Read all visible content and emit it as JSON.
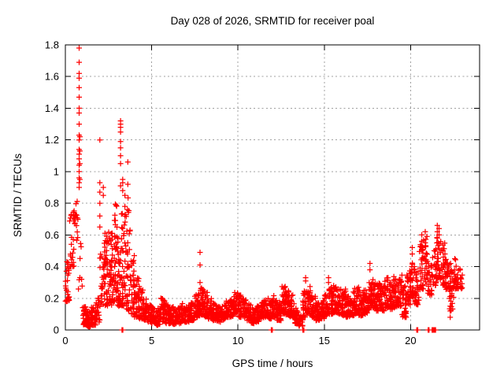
{
  "chart": {
    "title": "Day 028 of 2026, SRMTID for receiver poal",
    "xlabel": "GPS time / hours",
    "ylabel": "SRMTID / TECUs"
  },
  "chart_data": {
    "type": "scatter",
    "title": "Day 028 of 2026, SRMTID for receiver poal",
    "xlabel": "GPS time / hours",
    "ylabel": "SRMTID / TECUs",
    "marker": "plus",
    "marker_color": "#ff0000",
    "grid_color": "#a0a0a0",
    "border_color": "#000000",
    "background": "#ffffff",
    "x_range": [
      0,
      24
    ],
    "y_range": [
      0,
      1.8
    ],
    "x_ticks": [
      0,
      5,
      10,
      15,
      20
    ],
    "x_tick_labels": [
      "0",
      "5",
      "10",
      "15",
      "20"
    ],
    "y_ticks": [
      0,
      0.2,
      0.4,
      0.6,
      0.8,
      1,
      1.2,
      1.4,
      1.6,
      1.8
    ],
    "y_tick_labels": [
      "0",
      "0.2",
      "0.4",
      "0.6",
      "0.8",
      "1",
      "1.2",
      "1.4",
      "1.6",
      "1.8"
    ],
    "band_bin_hours": 0.25,
    "band_profile": [
      [
        0.0,
        0.18,
        0.45,
        26
      ],
      [
        0.25,
        0.4,
        0.78,
        22
      ],
      [
        0.5,
        0.55,
        0.82,
        16
      ],
      [
        0.75,
        0.25,
        0.55,
        8
      ],
      [
        1.0,
        0.03,
        0.15,
        32
      ],
      [
        1.25,
        0.02,
        0.12,
        30
      ],
      [
        1.5,
        0.03,
        0.15,
        30
      ],
      [
        1.75,
        0.05,
        0.2,
        22
      ],
      [
        2.0,
        0.15,
        0.5,
        24
      ],
      [
        2.25,
        0.15,
        0.62,
        40
      ],
      [
        2.5,
        0.15,
        0.66,
        42
      ],
      [
        2.75,
        0.18,
        0.8,
        40
      ],
      [
        3.0,
        0.15,
        0.62,
        42
      ],
      [
        3.25,
        0.15,
        0.75,
        42
      ],
      [
        3.5,
        0.12,
        0.9,
        36
      ],
      [
        3.75,
        0.1,
        0.48,
        34
      ],
      [
        4.0,
        0.08,
        0.36,
        34
      ],
      [
        4.25,
        0.07,
        0.28,
        30
      ],
      [
        4.5,
        0.06,
        0.2,
        30
      ],
      [
        4.75,
        0.05,
        0.16,
        28
      ],
      [
        5.0,
        0.04,
        0.15,
        28
      ],
      [
        5.25,
        0.03,
        0.14,
        28
      ],
      [
        5.5,
        0.05,
        0.2,
        28
      ],
      [
        5.75,
        0.04,
        0.16,
        28
      ],
      [
        6.0,
        0.04,
        0.15,
        28
      ],
      [
        6.25,
        0.03,
        0.13,
        28
      ],
      [
        6.5,
        0.04,
        0.15,
        28
      ],
      [
        6.75,
        0.05,
        0.17,
        28
      ],
      [
        7.0,
        0.05,
        0.16,
        28
      ],
      [
        7.25,
        0.06,
        0.18,
        28
      ],
      [
        7.5,
        0.08,
        0.24,
        34
      ],
      [
        7.75,
        0.09,
        0.28,
        36
      ],
      [
        8.0,
        0.08,
        0.25,
        34
      ],
      [
        8.25,
        0.07,
        0.2,
        30
      ],
      [
        8.5,
        0.06,
        0.17,
        28
      ],
      [
        8.75,
        0.05,
        0.15,
        28
      ],
      [
        9.0,
        0.06,
        0.17,
        28
      ],
      [
        9.25,
        0.08,
        0.19,
        28
      ],
      [
        9.5,
        0.08,
        0.21,
        30
      ],
      [
        9.75,
        0.1,
        0.25,
        30
      ],
      [
        10.0,
        0.08,
        0.22,
        30
      ],
      [
        10.25,
        0.08,
        0.2,
        30
      ],
      [
        10.5,
        0.06,
        0.17,
        28
      ],
      [
        10.75,
        0.04,
        0.14,
        28
      ],
      [
        11.0,
        0.05,
        0.15,
        28
      ],
      [
        11.25,
        0.07,
        0.18,
        28
      ],
      [
        11.5,
        0.08,
        0.2,
        30
      ],
      [
        11.75,
        0.07,
        0.19,
        30
      ],
      [
        12.0,
        0.08,
        0.22,
        30
      ],
      [
        12.25,
        0.06,
        0.18,
        30
      ],
      [
        12.5,
        0.1,
        0.28,
        32
      ],
      [
        12.75,
        0.09,
        0.25,
        32
      ],
      [
        13.0,
        0.08,
        0.22,
        30
      ],
      [
        13.25,
        0.04,
        0.14,
        28
      ],
      [
        13.5,
        0.02,
        0.1,
        26
      ],
      [
        13.75,
        0.08,
        0.28,
        30
      ],
      [
        14.0,
        0.1,
        0.28,
        30
      ],
      [
        14.25,
        0.08,
        0.22,
        30
      ],
      [
        14.5,
        0.06,
        0.17,
        28
      ],
      [
        14.75,
        0.07,
        0.19,
        28
      ],
      [
        15.0,
        0.09,
        0.25,
        32
      ],
      [
        15.25,
        0.1,
        0.28,
        32
      ],
      [
        15.5,
        0.11,
        0.28,
        32
      ],
      [
        15.75,
        0.1,
        0.26,
        30
      ],
      [
        16.0,
        0.09,
        0.26,
        30
      ],
      [
        16.25,
        0.08,
        0.22,
        30
      ],
      [
        16.5,
        0.09,
        0.24,
        30
      ],
      [
        16.75,
        0.1,
        0.27,
        30
      ],
      [
        17.0,
        0.09,
        0.25,
        30
      ],
      [
        17.25,
        0.1,
        0.26,
        30
      ],
      [
        17.5,
        0.12,
        0.3,
        32
      ],
      [
        17.75,
        0.13,
        0.33,
        32
      ],
      [
        18.0,
        0.12,
        0.3,
        32
      ],
      [
        18.25,
        0.12,
        0.29,
        30
      ],
      [
        18.5,
        0.14,
        0.33,
        32
      ],
      [
        18.75,
        0.13,
        0.3,
        30
      ],
      [
        19.0,
        0.14,
        0.34,
        32
      ],
      [
        19.25,
        0.15,
        0.35,
        32
      ],
      [
        19.5,
        0.08,
        0.28,
        28
      ],
      [
        19.75,
        0.16,
        0.38,
        32
      ],
      [
        20.0,
        0.2,
        0.45,
        32
      ],
      [
        20.25,
        0.16,
        0.38,
        28
      ],
      [
        20.5,
        0.25,
        0.55,
        28
      ],
      [
        20.75,
        0.28,
        0.6,
        26
      ],
      [
        21.0,
        0.22,
        0.45,
        24
      ],
      [
        21.25,
        0.28,
        0.52,
        24
      ],
      [
        21.5,
        0.32,
        0.62,
        30
      ],
      [
        21.75,
        0.28,
        0.55,
        28
      ],
      [
        22.0,
        0.25,
        0.48,
        28
      ],
      [
        22.25,
        0.12,
        0.42,
        26
      ],
      [
        22.5,
        0.26,
        0.45,
        24
      ],
      [
        22.75,
        0.26,
        0.4,
        18
      ]
    ],
    "spike_columns": [
      {
        "x": 0.8,
        "values": [
          0.9,
          0.93,
          0.96,
          1.0,
          1.04,
          1.08,
          1.11,
          1.14,
          1.2,
          1.23,
          1.3,
          1.37,
          1.4,
          1.47,
          1.53,
          1.59,
          1.62,
          1.69,
          1.78
        ]
      },
      {
        "x": 0.84,
        "values": [
          0.95,
          1.05,
          1.13,
          1.22
        ]
      },
      {
        "x": 2.0,
        "values": [
          0.65,
          0.72,
          0.8,
          0.87,
          0.93,
          1.2
        ]
      },
      {
        "x": 2.2,
        "values": [
          0.85,
          0.9
        ]
      },
      {
        "x": 3.2,
        "values": [
          0.91,
          1.05,
          1.1,
          1.15,
          1.19,
          1.25,
          1.28,
          1.3,
          1.32
        ]
      },
      {
        "x": 3.32,
        "values": [
          0.88,
          0.93,
          0.95
        ]
      },
      {
        "x": 3.45,
        "values": [
          0.72,
          0.78,
          0.85
        ]
      },
      {
        "x": 3.62,
        "values": [
          0.92,
          1.06
        ]
      },
      {
        "x": 7.8,
        "values": [
          0.3,
          0.41,
          0.49
        ]
      },
      {
        "x": 13.92,
        "values": [
          0.31,
          0.33
        ]
      },
      {
        "x": 15.25,
        "values": [
          0.3,
          0.33
        ]
      },
      {
        "x": 17.65,
        "values": [
          0.38,
          0.42
        ]
      },
      {
        "x": 19.4,
        "values": [
          0.3
        ]
      },
      {
        "x": 20.1,
        "values": [
          0.48,
          0.52
        ]
      },
      {
        "x": 20.65,
        "values": [
          0.52,
          0.56,
          0.6
        ]
      },
      {
        "x": 20.85,
        "values": [
          0.55,
          0.62
        ]
      },
      {
        "x": 21.55,
        "values": [
          0.58,
          0.62,
          0.66
        ]
      },
      {
        "x": 21.65,
        "values": [
          0.6,
          0.64
        ]
      },
      {
        "x": 22.3,
        "values": [
          0.08,
          0.12,
          0.15
        ]
      }
    ],
    "zero_marks": [
      3.28,
      3.33,
      11.93,
      11.99,
      13.76,
      13.82,
      20.36,
      20.42,
      21.02,
      21.07,
      21.25,
      21.3,
      21.35,
      21.4,
      21.45
    ]
  }
}
